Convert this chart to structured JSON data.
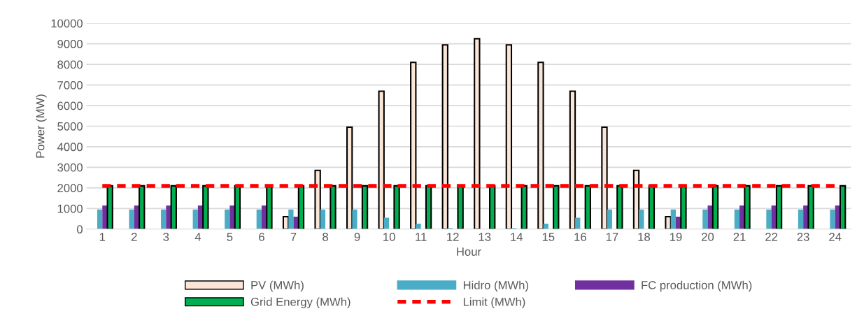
{
  "chart_data": {
    "type": "bar",
    "xlabel": "Hour",
    "ylabel": "Power (MW)",
    "categories": [
      "1",
      "2",
      "3",
      "4",
      "5",
      "6",
      "7",
      "8",
      "9",
      "10",
      "11",
      "12",
      "13",
      "14",
      "15",
      "16",
      "17",
      "18",
      "19",
      "20",
      "21",
      "22",
      "23",
      "24"
    ],
    "series": [
      {
        "name": "PV (MWh)",
        "color": "#fbe5d6",
        "values": [
          0,
          0,
          0,
          0,
          0,
          0,
          600,
          2850,
          4950,
          6700,
          8100,
          8950,
          9250,
          8950,
          8100,
          6700,
          4950,
          2850,
          600,
          0,
          0,
          0,
          0,
          0
        ]
      },
      {
        "name": "Hidro (MWh)",
        "color": "#4bacc6",
        "values": [
          950,
          950,
          950,
          950,
          950,
          950,
          950,
          950,
          950,
          550,
          260,
          50,
          0,
          50,
          260,
          550,
          950,
          950,
          950,
          950,
          950,
          950,
          950,
          950
        ]
      },
      {
        "name": "FC production (MWh)",
        "color": "#7030a0",
        "values": [
          1150,
          1150,
          1150,
          1150,
          1150,
          1150,
          600,
          0,
          0,
          0,
          0,
          0,
          0,
          0,
          0,
          0,
          0,
          0,
          600,
          1150,
          1150,
          1150,
          1150,
          1150
        ]
      },
      {
        "name": "Grid Energy (MWh)",
        "color": "#00b050",
        "values": [
          2100,
          2100,
          2100,
          2100,
          2100,
          2100,
          2100,
          2100,
          2100,
          2100,
          2100,
          2100,
          2100,
          2100,
          2100,
          2100,
          2100,
          2100,
          2100,
          2100,
          2100,
          2100,
          2100,
          2100
        ]
      },
      {
        "name": "Limit (MWh)",
        "type": "line",
        "line_style": "dashed",
        "color": "#ff0000",
        "values": [
          2100,
          2100,
          2100,
          2100,
          2100,
          2100,
          2100,
          2100,
          2100,
          2100,
          2100,
          2100,
          2100,
          2100,
          2100,
          2100,
          2100,
          2100,
          2100,
          2100,
          2100,
          2100,
          2100,
          2100
        ]
      }
    ],
    "ylim": [
      0,
      10000
    ],
    "yticks": [
      0,
      1000,
      2000,
      3000,
      4000,
      5000,
      6000,
      7000,
      8000,
      9000,
      10000
    ],
    "grid": "y",
    "legend": "bottom",
    "marker": "none"
  }
}
